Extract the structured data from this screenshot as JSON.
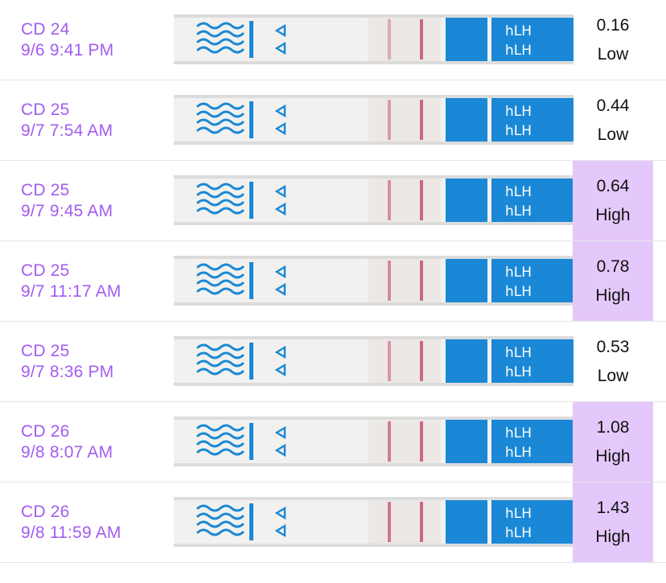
{
  "tests": [
    {
      "cycle_day": "CD 24",
      "datetime": "9/6 9:41 PM",
      "value": "0.16",
      "level": "Low",
      "strip_text": "hLH",
      "line_strength": 0.35
    },
    {
      "cycle_day": "CD 25",
      "datetime": "9/7 7:54 AM",
      "value": "0.44",
      "level": "Low",
      "strip_text": "hLH",
      "line_strength": 0.55
    },
    {
      "cycle_day": "CD 25",
      "datetime": "9/7 9:45 AM",
      "value": "0.64",
      "level": "High",
      "strip_text": "hLH",
      "line_strength": 0.7
    },
    {
      "cycle_day": "CD 25",
      "datetime": "9/7 11:17 AM",
      "value": "0.78",
      "level": "High",
      "strip_text": "hLH",
      "line_strength": 0.75
    },
    {
      "cycle_day": "CD 25",
      "datetime": "9/7 8:36 PM",
      "value": "0.53",
      "level": "Low",
      "strip_text": "hLH",
      "line_strength": 0.6
    },
    {
      "cycle_day": "CD 26",
      "datetime": "9/8 8:07 AM",
      "value": "1.08",
      "level": "High",
      "strip_text": "hLH",
      "line_strength": 0.9
    },
    {
      "cycle_day": "CD 26",
      "datetime": "9/8 11:59 AM",
      "value": "1.43",
      "level": "High",
      "strip_text": "hLH",
      "line_strength": 1.0
    }
  ],
  "colors": {
    "label": "#a35cf0",
    "high_background": "#e5c8fb",
    "strip_blue": "#1a88d6",
    "test_line": "#c85a78"
  }
}
